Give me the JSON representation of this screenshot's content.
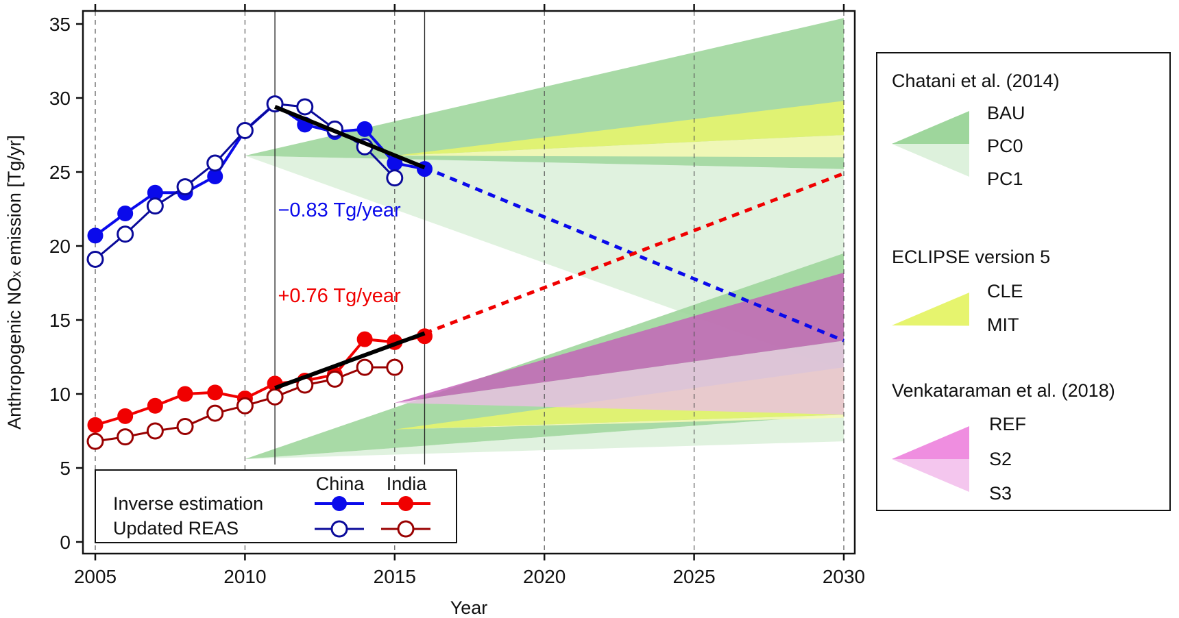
{
  "chart_data": {
    "type": "line",
    "xlabel": "Year",
    "ylabel_prefix": "Anthropogenic NO",
    "ylabel_sub": "x",
    "ylabel_suffix": " emission [Tg/yr]",
    "xlim": [
      2004.9,
      2030.7
    ],
    "ylim": [
      -0.8,
      36
    ],
    "xticks": [
      2005,
      2010,
      2015,
      2020,
      2025,
      2030
    ],
    "yticks": [
      0,
      5,
      10,
      15,
      20,
      25,
      30,
      35
    ],
    "grid_x": [
      2005,
      2010,
      2015,
      2020,
      2025,
      2030
    ],
    "colors": {
      "china": "#0a0aeb",
      "china_reas": "#0a0a9a",
      "india": "#f00000",
      "india_reas": "#990000",
      "trend": "#000000",
      "bau": "#9ed69c",
      "pc1": "#ddf1dc",
      "cle": "#e6f46e",
      "mit": "#f6f9b8",
      "ref": "#c460b8",
      "s3": "#eabfe4"
    },
    "series": [
      {
        "name": "China Inverse estimation",
        "key": "china",
        "filled": true,
        "x": [
          2005,
          2006,
          2007,
          2008,
          2009,
          2010,
          2011,
          2012,
          2013,
          2014,
          2015,
          2016
        ],
        "y": [
          20.7,
          22.2,
          23.6,
          23.6,
          24.7,
          27.8,
          29.6,
          28.2,
          27.7,
          27.9,
          25.6,
          25.2
        ]
      },
      {
        "name": "China Updated REAS",
        "key": "china_reas",
        "filled": false,
        "x": [
          2005,
          2006,
          2007,
          2008,
          2009,
          2010,
          2011,
          2012,
          2013,
          2014,
          2015
        ],
        "y": [
          19.1,
          20.8,
          22.7,
          24.0,
          25.6,
          27.8,
          29.6,
          29.4,
          27.9,
          26.7,
          24.6
        ]
      },
      {
        "name": "India Inverse estimation",
        "key": "india",
        "filled": true,
        "x": [
          2005,
          2006,
          2007,
          2008,
          2009,
          2010,
          2011,
          2012,
          2013,
          2014,
          2015,
          2016
        ],
        "y": [
          7.9,
          8.5,
          9.2,
          10.0,
          10.1,
          9.7,
          10.7,
          10.9,
          11.3,
          13.7,
          13.5,
          13.9
        ]
      },
      {
        "name": "India Updated REAS",
        "key": "india_reas",
        "filled": false,
        "x": [
          2005,
          2006,
          2007,
          2008,
          2009,
          2010,
          2011,
          2012,
          2013,
          2014,
          2015
        ],
        "y": [
          6.8,
          7.1,
          7.5,
          7.8,
          8.7,
          9.2,
          9.8,
          10.6,
          11.0,
          11.8,
          11.8
        ]
      }
    ],
    "trends": [
      {
        "name": "China trend",
        "key": "china",
        "x": [
          2011,
          2016
        ],
        "y": [
          29.4,
          25.3
        ],
        "proj_x": [
          2016,
          2030
        ],
        "proj_y": [
          25.3,
          13.6
        ]
      },
      {
        "name": "India trend",
        "key": "india",
        "x": [
          2011,
          2016
        ],
        "y": [
          10.4,
          14.1
        ],
        "proj_x": [
          2016,
          2030
        ],
        "proj_y": [
          14.1,
          24.9
        ]
      }
    ],
    "annotations": [
      {
        "text": "−0.83 Tg/year",
        "x": 2011.1,
        "y": 22.0,
        "color": "china"
      },
      {
        "text": "+0.76 Tg/year",
        "x": 2011.1,
        "y": 16.2,
        "color": "india"
      }
    ],
    "vlines": [
      2011,
      2016
    ],
    "scenarios": [
      {
        "name": "PC1 China",
        "color": "pc1",
        "points": [
          [
            2010,
            26.1
          ],
          [
            2030,
            25.2
          ],
          [
            2030,
            11.6
          ]
        ]
      },
      {
        "name": "BAU China",
        "color": "bau",
        "points": [
          [
            2010,
            26.1
          ],
          [
            2030,
            35.4
          ],
          [
            2030,
            25.2
          ]
        ]
      },
      {
        "name": "MIT China",
        "color": "mit",
        "points": [
          [
            2015,
            26.1
          ],
          [
            2030,
            27.5
          ],
          [
            2030,
            26.0
          ]
        ]
      },
      {
        "name": "CLE China",
        "color": "cle",
        "points": [
          [
            2015,
            26.1
          ],
          [
            2030,
            29.8
          ],
          [
            2030,
            27.5
          ]
        ]
      },
      {
        "name": "PC1 India",
        "color": "pc1",
        "points": [
          [
            2010,
            5.6
          ],
          [
            2030,
            8.6
          ],
          [
            2030,
            6.8
          ]
        ]
      },
      {
        "name": "BAU India",
        "color": "bau",
        "points": [
          [
            2010,
            5.6
          ],
          [
            2030,
            19.5
          ],
          [
            2030,
            8.6
          ]
        ]
      },
      {
        "name": "MIT India",
        "color": "mit",
        "points": [
          [
            2015,
            7.6
          ],
          [
            2030,
            8.6
          ],
          [
            2030,
            8.4
          ]
        ]
      },
      {
        "name": "CLE India",
        "color": "cle",
        "points": [
          [
            2015,
            7.6
          ],
          [
            2030,
            11.8
          ],
          [
            2030,
            8.6
          ]
        ]
      },
      {
        "name": "S3 India",
        "color": "s3",
        "points": [
          [
            2015,
            9.4
          ],
          [
            2030,
            13.6
          ],
          [
            2030,
            8.6
          ]
        ]
      },
      {
        "name": "REF India",
        "color": "ref",
        "points": [
          [
            2015,
            9.4
          ],
          [
            2030,
            18.2
          ],
          [
            2030,
            13.6
          ]
        ]
      }
    ],
    "legend_inner": {
      "headers": [
        "China",
        "India"
      ],
      "rows": [
        "Inverse estimation",
        "Updated REAS"
      ]
    },
    "legend_outer": {
      "groups": [
        {
          "title": "Chatani et al. (2014)",
          "items": [
            "BAU",
            "PC0",
            "PC1"
          ]
        },
        {
          "title": "ECLIPSE version 5",
          "items": [
            "CLE",
            "MIT"
          ]
        },
        {
          "title": "Venkataraman et al. (2018)",
          "items": [
            "REF",
            "S2",
            "S3"
          ]
        }
      ]
    }
  }
}
